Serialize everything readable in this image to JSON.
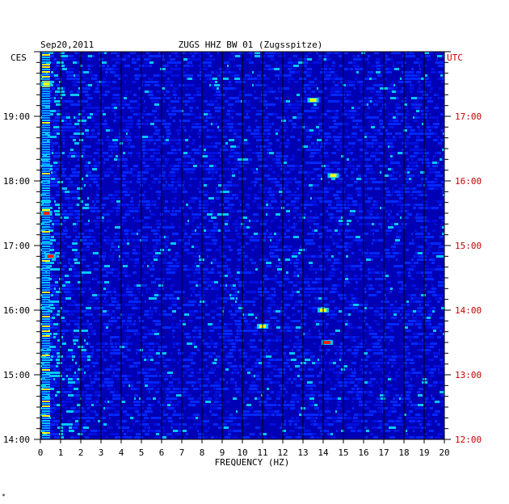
{
  "header": {
    "date": "Sep20,2011",
    "station": "ZUGS HHZ BW 01 (Zugsspitze)",
    "left_zone": "CES",
    "right_zone": "UTC",
    "footnote_mark": "*"
  },
  "chart_data": {
    "type": "heatmap",
    "title": "ZUGS HHZ BW 01 (Zugsspitze)",
    "xlabel": "FREQUENCY (HZ)",
    "ylabel_left": "CES",
    "ylabel_right": "UTC",
    "xlim": [
      0,
      20
    ],
    "x_ticks": [
      "0",
      "1",
      "2",
      "3",
      "4",
      "5",
      "6",
      "7",
      "8",
      "9",
      "10",
      "11",
      "12",
      "13",
      "14",
      "15",
      "16",
      "17",
      "18",
      "19",
      "20"
    ],
    "y_ticks_left": [
      "19:00",
      "18:00",
      "17:00",
      "16:00",
      "15:00",
      "14:00"
    ],
    "y_ticks_right": [
      "17:00",
      "16:00",
      "15:00",
      "14:00",
      "13:00",
      "12:00"
    ],
    "colors": {
      "background": "#0000b4",
      "low": "#0028ff",
      "mid": "#00c8ff",
      "high": "#ffff00",
      "peak": "#ff2000",
      "utc_label": "#cc0000"
    },
    "hot_spots": [
      {
        "freq_hz": 0.3,
        "time_ces": "19:30",
        "level": "high"
      },
      {
        "freq_hz": 0.3,
        "time_ces": "17:30",
        "level": "peak"
      },
      {
        "freq_hz": 0.5,
        "time_ces": "16:50",
        "level": "peak"
      },
      {
        "freq_hz": 14.2,
        "time_ces": "15:30",
        "level": "peak"
      },
      {
        "freq_hz": 14.0,
        "time_ces": "16:00",
        "level": "high"
      },
      {
        "freq_hz": 11.0,
        "time_ces": "15:45",
        "level": "high"
      },
      {
        "freq_hz": 14.5,
        "time_ces": "18:05",
        "level": "high"
      },
      {
        "freq_hz": 13.5,
        "time_ces": "19:15",
        "level": "high"
      }
    ]
  }
}
